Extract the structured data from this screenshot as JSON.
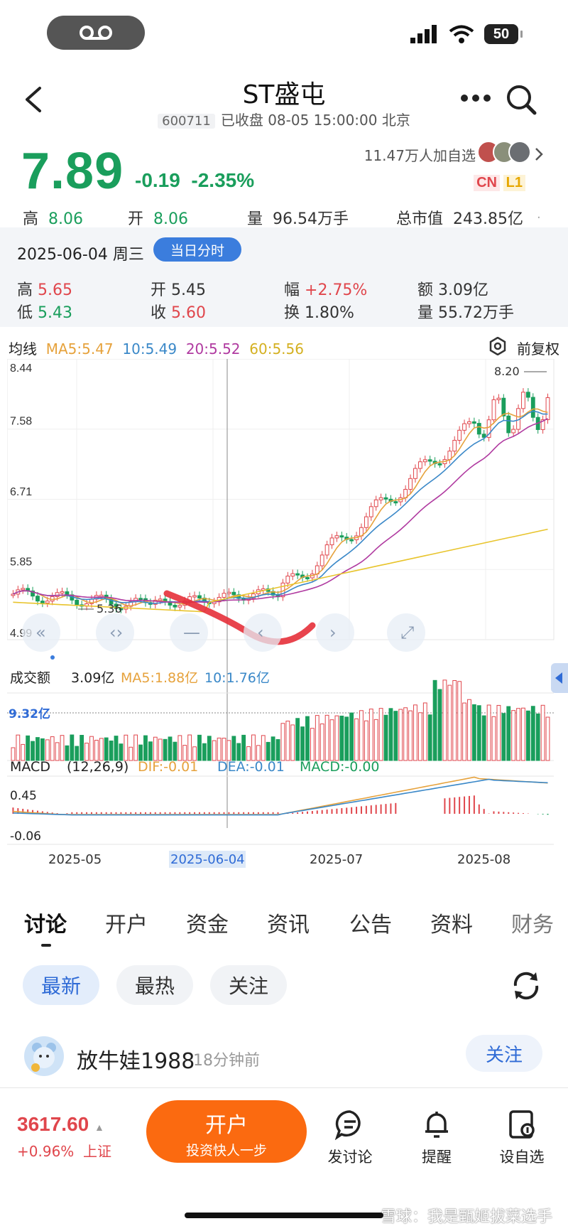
{
  "status_bar": {
    "battery": "50"
  },
  "header": {
    "title": "ST盛屯",
    "code": "600711",
    "status_text": "已收盘 08-05 15:00:00 北京"
  },
  "quote": {
    "price": "7.89",
    "change": "-0.19",
    "change_pct": "-2.35%",
    "followers": "11.47万人加自选",
    "tag_cn": "CN",
    "tag_l1": "L1",
    "high_label": "高",
    "high": "8.06",
    "open_label": "开",
    "open": "8.06",
    "volume_label": "量",
    "volume": "96.54万手",
    "mcap_label": "总市值",
    "mcap": "243.85亿"
  },
  "day_panel": {
    "date": "2025-06-04 周三",
    "button": "当日分时",
    "high_label": "高",
    "high": "5.65",
    "low_label": "低",
    "low": "5.43",
    "open_label": "开",
    "open": "5.45",
    "close_label": "收",
    "close": "5.60",
    "amp_label": "幅",
    "amp": "+2.75%",
    "turn_label": "换",
    "turn": "1.80%",
    "amount_label": "额",
    "amount": "3.09亿",
    "vol_label": "量",
    "vol": "55.72万手"
  },
  "ma_legend": {
    "title": "均线",
    "ma5": "MA5:5.47",
    "ma10": "10:5.49",
    "ma20": "20:5.52",
    "ma60": "60:5.56",
    "adjust": "前复权"
  },
  "kline": {
    "y_ticks": [
      "8.44",
      "7.58",
      "6.71",
      "5.85",
      "4.99"
    ],
    "max_label": "8.20",
    "min_label": "5.36"
  },
  "volume_legend": {
    "title": "成交额",
    "value": "3.09亿",
    "ma5": "MA5:1.88亿",
    "ma10": "10:1.76亿",
    "marker": "9.32亿"
  },
  "macd_legend": {
    "title": "MACD",
    "params": "(12,26,9)",
    "dif": "DIF:-0.01",
    "dea": "DEA:-0.01",
    "macd": "MACD:-0.00",
    "top": "0.45",
    "bottom": "-0.06"
  },
  "x_axis": [
    "2025-05",
    "2025-06-04",
    "2025-07",
    "2025-08"
  ],
  "tabs": [
    "讨论",
    "开户",
    "资金",
    "资讯",
    "公告",
    "资料",
    "财务"
  ],
  "filters": [
    "最新",
    "最热",
    "关注"
  ],
  "post": {
    "user": "放牛娃1988",
    "time": "18分钟前",
    "follow": "关注"
  },
  "bottom": {
    "index_value": "3617.60",
    "index_change": "+0.96%",
    "index_name": "上证",
    "open_title": "开户",
    "open_sub": "投资快人一步",
    "discuss": "发讨论",
    "remind": "提醒",
    "watchlist": "设自选"
  },
  "watermark": "雪球：我是甄姬拔菜选手",
  "colors": {
    "up": "#e0464c",
    "down": "#1a9e5c",
    "ma5": "#e6a23c",
    "ma10": "#3a88c8",
    "ma20": "#b03aa0",
    "ma60": "#e8c42c",
    "accent": "#3b7ddd",
    "open_button": "#fb6a10"
  }
}
